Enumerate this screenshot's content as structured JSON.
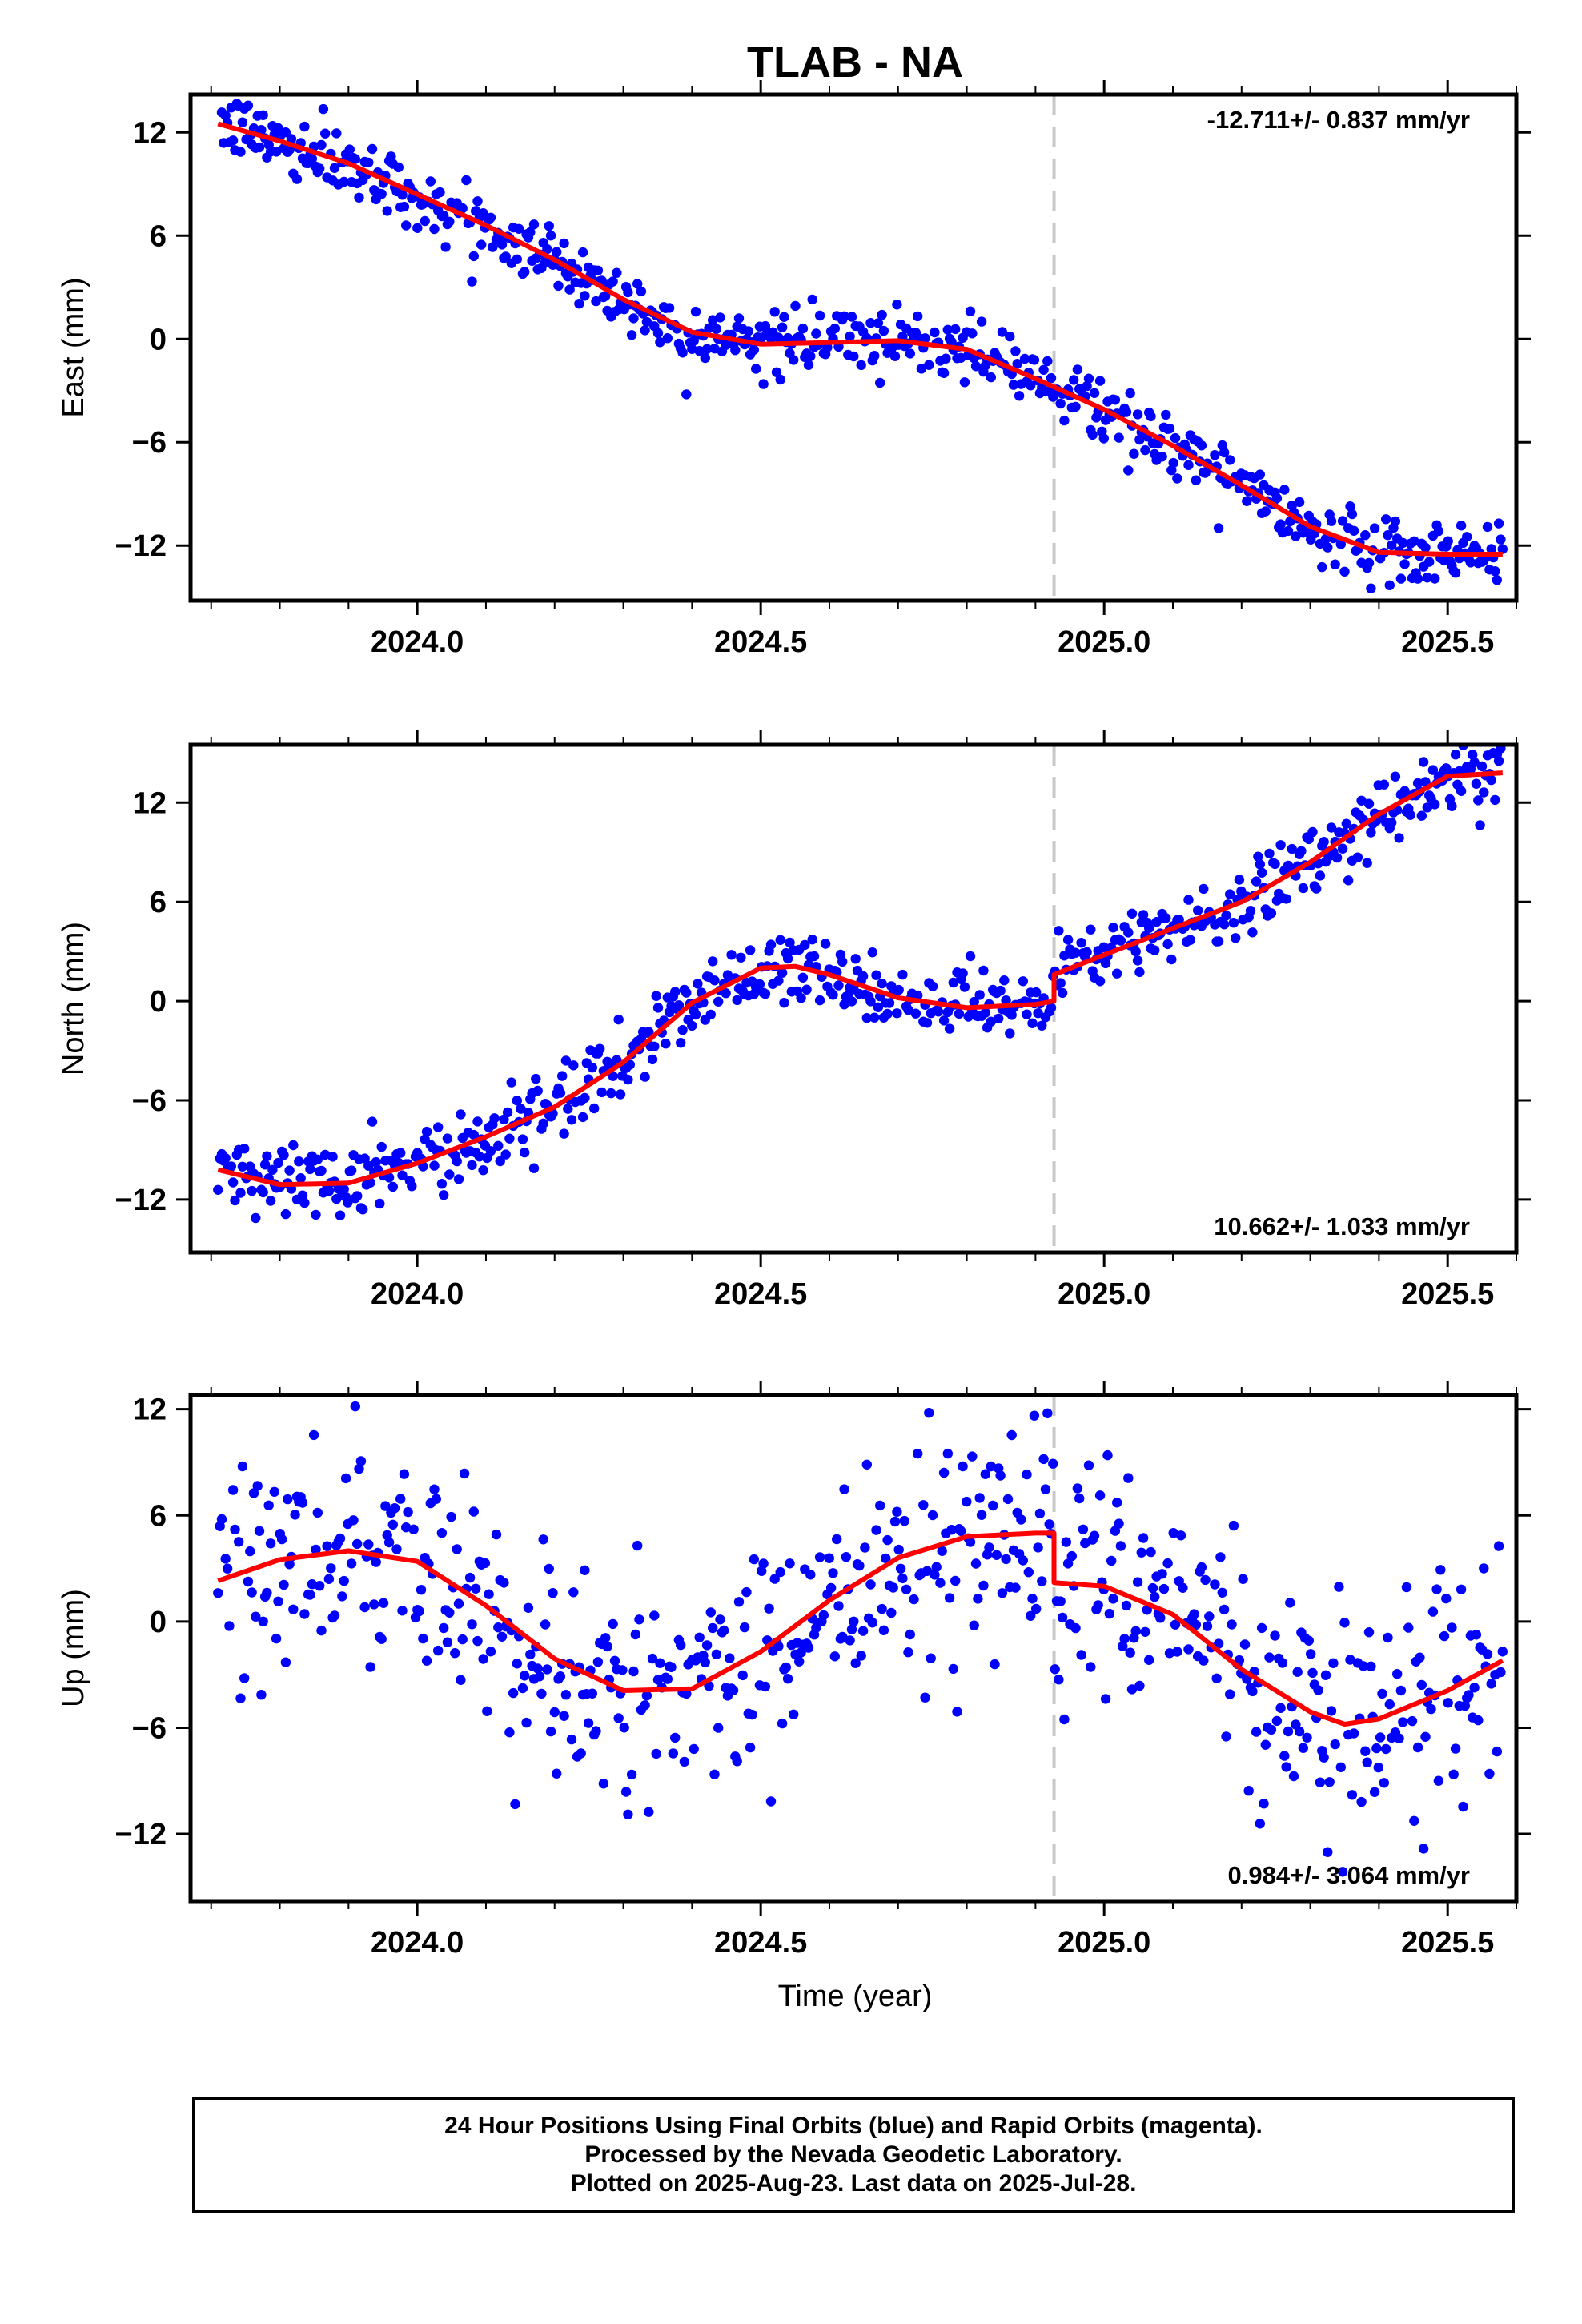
{
  "title": "TLAB - NA",
  "x_axis_label": "Time (year)",
  "colors": {
    "data": "#0000ff",
    "fit": "#ff0000",
    "break": "#c8c8c8",
    "frame": "#000000"
  },
  "footer": {
    "line1": "24 Hour Positions Using Final Orbits (blue) and Rapid Orbits (magenta).",
    "line2": "Processed by the Nevada Geodetic Laboratory.",
    "line3": "Plotted on 2025-Aug-23. Last data on 2025-Jul-28."
  },
  "chart_data": [
    {
      "type": "scatter",
      "component": "East",
      "ylabel": "East (mm)",
      "rate_label": "-12.711+/- 0.837 mm/yr",
      "rate_position": "top-right",
      "xlim": [
        2023.67,
        2025.6
      ],
      "ylim": [
        -15.2,
        14.2
      ],
      "xticks": [
        2024.0,
        2024.5,
        2025.0,
        2025.5
      ],
      "xtick_labels": [
        "2024.0",
        "2024.5",
        "2025.0",
        "2025.5"
      ],
      "yticks": [
        -12,
        -6,
        0,
        6,
        12
      ],
      "ytick_labels": [
        "−12",
        "−6",
        "0",
        "6",
        "12"
      ],
      "break_x": 2024.927,
      "noise": 0.9,
      "data_range": [
        2023.71,
        2025.58
      ],
      "fit": {
        "x": [
          2023.71,
          2023.8,
          2023.9,
          2024.0,
          2024.1,
          2024.2,
          2024.3,
          2024.4,
          2024.5,
          2024.6,
          2024.7,
          2024.8,
          2024.9,
          2025.0,
          2025.1,
          2025.2,
          2025.3,
          2025.4,
          2025.5,
          2025.58
        ],
        "y": [
          12.5,
          11.5,
          10.2,
          8.4,
          6.6,
          4.6,
          2.3,
          0.4,
          -0.3,
          -0.2,
          -0.1,
          -0.6,
          -2.3,
          -4.1,
          -6.2,
          -8.5,
          -10.9,
          -12.4,
          -12.5,
          -12.5
        ]
      }
    },
    {
      "type": "scatter",
      "component": "North",
      "ylabel": "North (mm)",
      "rate_label": "10.662+/- 1.033 mm/yr",
      "rate_position": "bottom-right",
      "xlim": [
        2023.67,
        2025.6
      ],
      "ylim": [
        -15.2,
        15.5
      ],
      "xticks": [
        2024.0,
        2024.5,
        2025.0,
        2025.5
      ],
      "xtick_labels": [
        "2024.0",
        "2024.5",
        "2025.0",
        "2025.5"
      ],
      "yticks": [
        -12,
        -6,
        0,
        6,
        12
      ],
      "ytick_labels": [
        "−12",
        "−6",
        "0",
        "6",
        "12"
      ],
      "break_x": 2024.927,
      "noise": 1.1,
      "data_range": [
        2023.71,
        2025.58
      ],
      "fit": {
        "x": [
          2023.71,
          2023.8,
          2023.9,
          2024.0,
          2024.1,
          2024.2,
          2024.3,
          2024.4,
          2024.5,
          2024.55,
          2024.6,
          2024.7,
          2024.8,
          2024.9,
          2024.927,
          2024.927,
          2025.0,
          2025.1,
          2025.2,
          2025.3,
          2025.4,
          2025.5,
          2025.58
        ],
        "y": [
          -10.2,
          -11.1,
          -11.0,
          -9.8,
          -8.2,
          -6.4,
          -3.7,
          -0.1,
          2.0,
          2.1,
          1.6,
          0.2,
          -0.4,
          -0.2,
          0.0,
          1.6,
          2.8,
          4.4,
          6.0,
          8.4,
          11.3,
          13.6,
          13.8
        ]
      }
    },
    {
      "type": "scatter",
      "component": "Up",
      "ylabel": "Up (mm)",
      "rate_label": "0.984+/- 3.064 mm/yr",
      "rate_position": "bottom-right",
      "xlim": [
        2023.67,
        2025.6
      ],
      "ylim": [
        -15.8,
        12.8
      ],
      "xticks": [
        2024.0,
        2024.5,
        2025.0,
        2025.5
      ],
      "xtick_labels": [
        "2024.0",
        "2024.5",
        "2025.0",
        "2025.5"
      ],
      "yticks": [
        -12,
        -6,
        0,
        6,
        12
      ],
      "ytick_labels": [
        "−12",
        "−6",
        "0",
        "6",
        "12"
      ],
      "break_x": 2024.927,
      "noise": 3.2,
      "data_range": [
        2023.71,
        2025.58
      ],
      "fit": {
        "x": [
          2023.71,
          2023.8,
          2023.9,
          2024.0,
          2024.1,
          2024.2,
          2024.3,
          2024.4,
          2024.5,
          2024.6,
          2024.7,
          2024.8,
          2024.9,
          2024.927,
          2024.927,
          2025.0,
          2025.1,
          2025.2,
          2025.3,
          2025.35,
          2025.4,
          2025.5,
          2025.58
        ],
        "y": [
          2.3,
          3.5,
          4.0,
          3.4,
          0.9,
          -2.1,
          -3.9,
          -3.8,
          -1.7,
          1.2,
          3.6,
          4.8,
          5.0,
          5.0,
          2.2,
          2.0,
          0.4,
          -2.7,
          -5.1,
          -5.8,
          -5.5,
          -3.9,
          -2.2
        ]
      }
    }
  ]
}
